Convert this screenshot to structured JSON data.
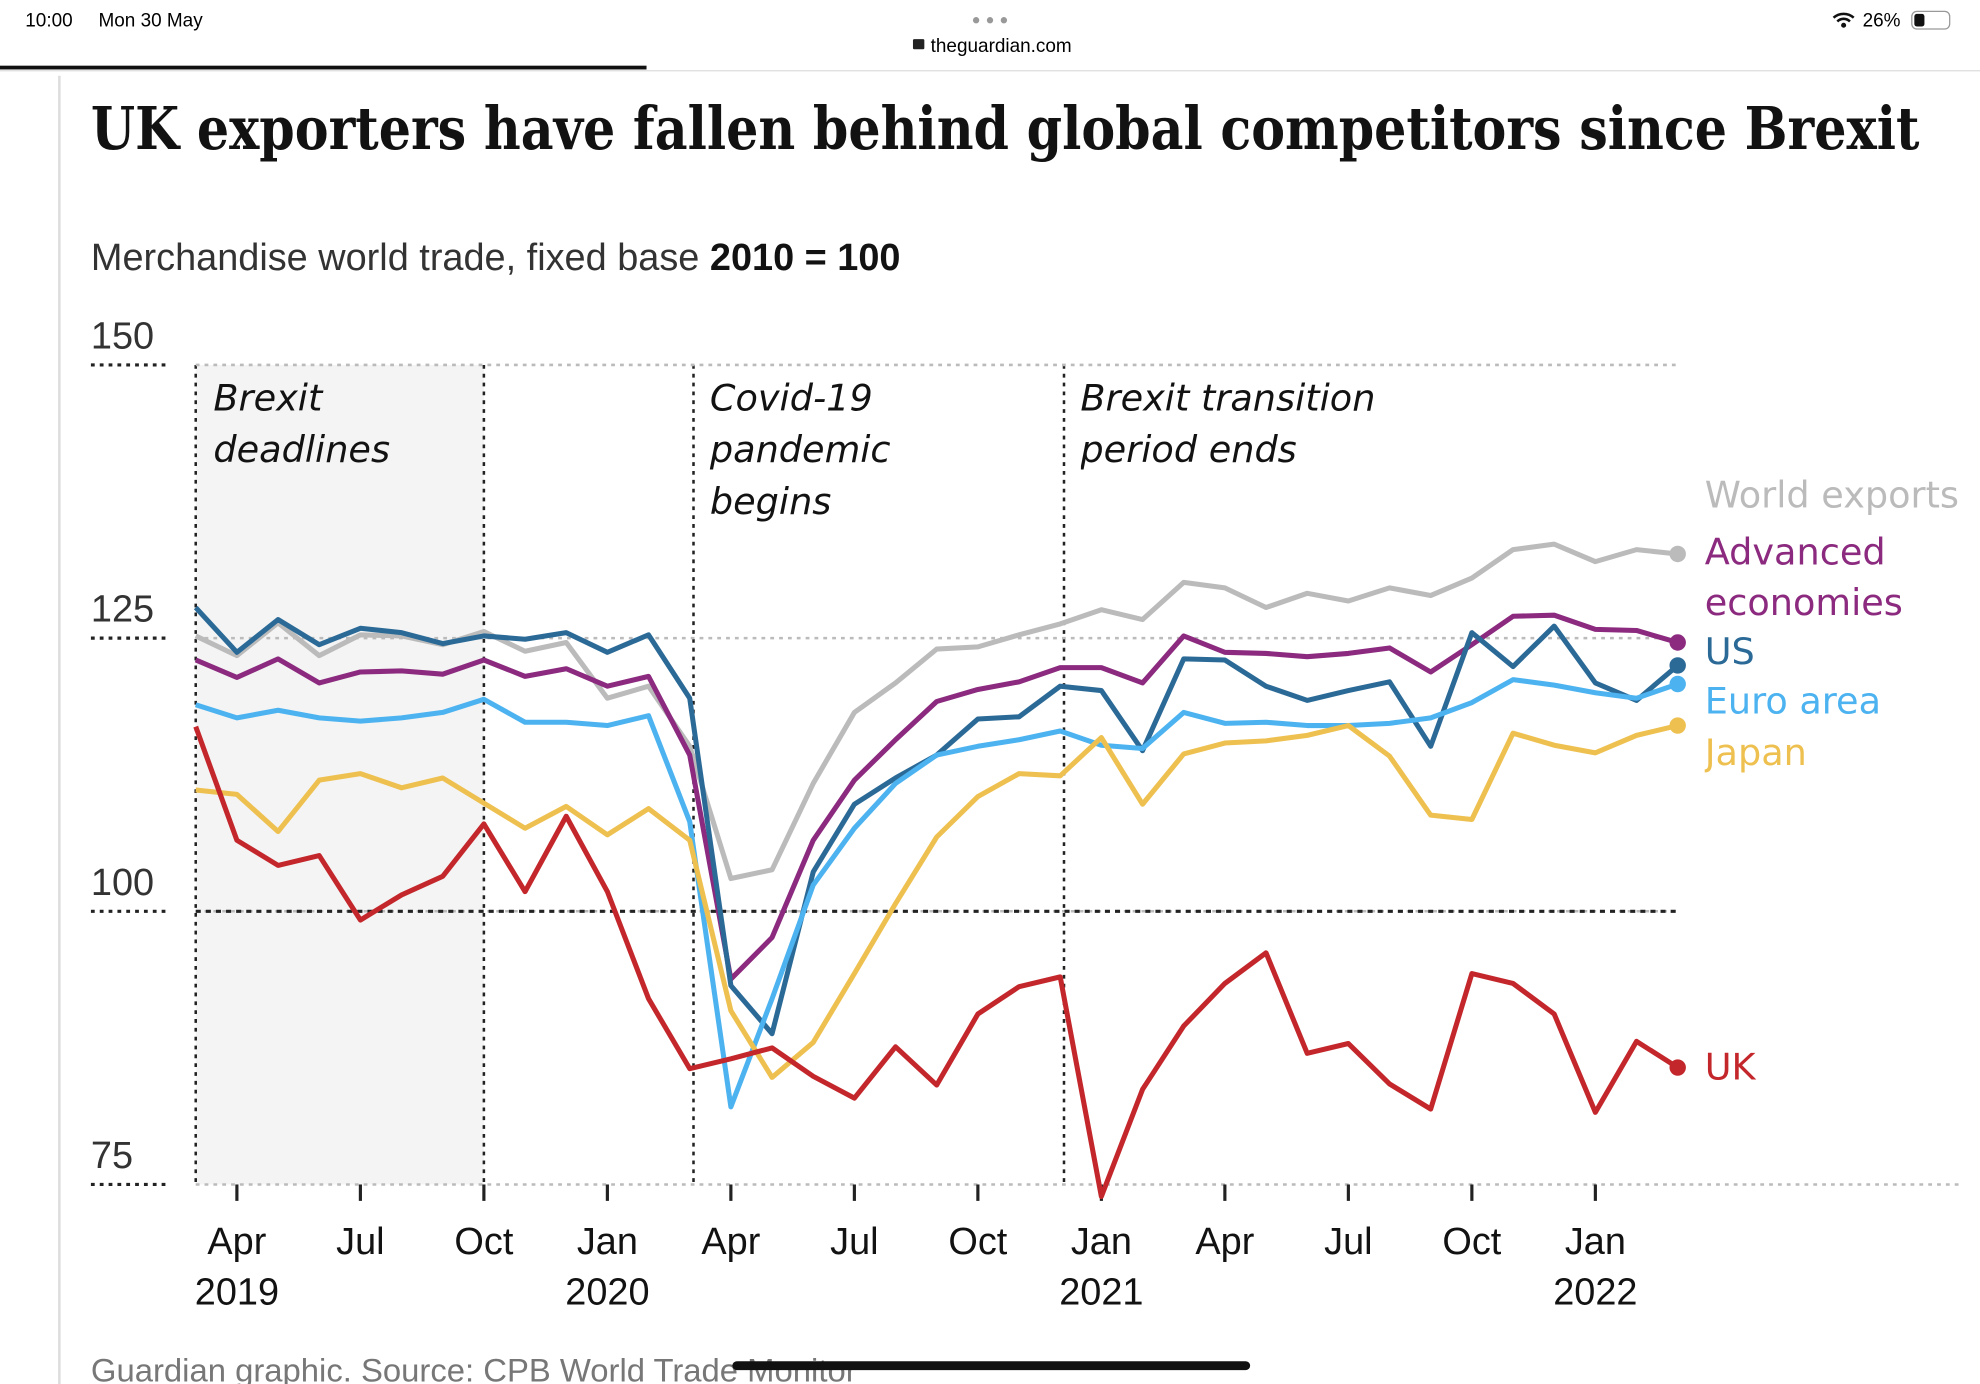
{
  "status_bar": {
    "time": "10:00",
    "date": "Mon 30 May",
    "battery": "26%"
  },
  "browser": {
    "url": "theguardian.com"
  },
  "chart_data": {
    "type": "line",
    "title": "UK exporters have fallen behind global competitors since Brexit",
    "subtitle": "Merchandise world trade, fixed base",
    "subtitle_emphasis": "2010 = 100",
    "source": "Guardian graphic. Source: CPB World Trade Monitor",
    "x": [
      "2019-03",
      "2019-04",
      "2019-05",
      "2019-06",
      "2019-07",
      "2019-08",
      "2019-09",
      "2019-10",
      "2019-11",
      "2019-12",
      "2020-01",
      "2020-02",
      "2020-03",
      "2020-04",
      "2020-05",
      "2020-06",
      "2020-07",
      "2020-08",
      "2020-09",
      "2020-10",
      "2020-11",
      "2020-12",
      "2021-01",
      "2021-02",
      "2021-03",
      "2021-04",
      "2021-05",
      "2021-06",
      "2021-07",
      "2021-08",
      "2021-09",
      "2021-10",
      "2021-11",
      "2021-12",
      "2022-01",
      "2022-02",
      "2022-03"
    ],
    "series": [
      {
        "name": "World exports",
        "color": "#bbbbbb",
        "values": [
          125.2,
          123.4,
          126.4,
          123.4,
          125.3,
          125.2,
          124.4,
          125.6,
          123.8,
          124.6,
          119.5,
          120.6,
          115.1,
          103.0,
          103.8,
          111.7,
          118.2,
          120.9,
          124.0,
          124.2,
          125.3,
          126.3,
          127.6,
          126.7,
          130.1,
          129.6,
          127.8,
          129.1,
          128.4,
          129.6,
          128.9,
          130.5,
          133.1,
          133.6,
          132.0,
          133.1,
          132.7
        ]
      },
      {
        "name": "Advanced economies",
        "color": "#8b2a7e",
        "values": [
          123.0,
          121.4,
          123.1,
          120.9,
          121.9,
          122.0,
          121.7,
          123.0,
          121.5,
          122.2,
          120.6,
          121.5,
          114.3,
          93.8,
          97.6,
          106.5,
          112.0,
          115.7,
          119.2,
          120.3,
          121.0,
          122.3,
          122.3,
          120.9,
          125.2,
          123.7,
          123.6,
          123.3,
          123.6,
          124.1,
          121.9,
          124.4,
          127.0,
          127.1,
          125.8,
          125.7,
          124.6
        ]
      },
      {
        "name": "US",
        "color": "#2b6a97",
        "values": [
          127.8,
          123.7,
          126.7,
          124.4,
          125.9,
          125.5,
          124.5,
          125.2,
          124.9,
          125.5,
          123.7,
          125.3,
          119.5,
          93.2,
          88.8,
          103.6,
          109.8,
          112.2,
          114.3,
          117.6,
          117.8,
          120.6,
          120.2,
          114.7,
          123.1,
          123.0,
          120.6,
          119.3,
          120.2,
          121.0,
          115.1,
          125.5,
          122.4,
          126.1,
          120.9,
          119.3,
          122.5
        ]
      },
      {
        "name": "Euro area",
        "color": "#4cb3f0",
        "values": [
          118.9,
          117.7,
          118.4,
          117.7,
          117.4,
          117.7,
          118.2,
          119.4,
          117.3,
          117.3,
          117.0,
          117.9,
          108.2,
          82.1,
          92.0,
          102.4,
          107.6,
          111.7,
          114.3,
          115.1,
          115.7,
          116.5,
          115.2,
          114.9,
          118.2,
          117.2,
          117.3,
          117.0,
          117.0,
          117.2,
          117.7,
          119.1,
          121.2,
          120.7,
          120.0,
          119.5,
          120.8
        ]
      },
      {
        "name": "Japan",
        "color": "#eec04f",
        "values": [
          111.1,
          110.7,
          107.3,
          112.0,
          112.6,
          111.3,
          112.2,
          109.9,
          107.6,
          109.6,
          107.0,
          109.4,
          106.5,
          90.9,
          84.8,
          88.0,
          94.3,
          100.7,
          106.8,
          110.5,
          112.6,
          112.4,
          115.9,
          109.8,
          114.4,
          115.4,
          115.6,
          116.1,
          117.0,
          114.2,
          108.8,
          108.4,
          116.3,
          115.2,
          114.5,
          116.1,
          117.0
        ]
      },
      {
        "name": "UK",
        "color": "#c4272b",
        "values": [
          116.9,
          106.5,
          104.2,
          105.1,
          99.2,
          101.5,
          103.2,
          108.0,
          101.8,
          108.7,
          101.8,
          92.0,
          85.6,
          86.5,
          87.5,
          84.9,
          82.9,
          87.6,
          84.1,
          90.6,
          93.1,
          94.0,
          73.9,
          83.7,
          89.5,
          93.4,
          96.2,
          87.0,
          87.9,
          84.2,
          81.9,
          94.3,
          93.4,
          90.6,
          81.6,
          88.1,
          85.7
        ]
      }
    ],
    "ylim": [
      75,
      150
    ],
    "yticks": [
      75,
      100,
      125,
      150
    ],
    "reference_line": 100,
    "grid": true,
    "xticks": [
      {
        "value": "2019-04",
        "label": "Apr",
        "sublabel": "2019"
      },
      {
        "value": "2019-07",
        "label": "Jul"
      },
      {
        "value": "2019-10",
        "label": "Oct"
      },
      {
        "value": "2020-01",
        "label": "Jan",
        "sublabel": "2020"
      },
      {
        "value": "2020-04",
        "label": "Apr"
      },
      {
        "value": "2020-07",
        "label": "Jul"
      },
      {
        "value": "2020-10",
        "label": "Oct"
      },
      {
        "value": "2021-01",
        "label": "Jan",
        "sublabel": "2021"
      },
      {
        "value": "2021-04",
        "label": "Apr"
      },
      {
        "value": "2021-07",
        "label": "Jul"
      },
      {
        "value": "2021-10",
        "label": "Oct"
      },
      {
        "value": "2022-01",
        "label": "Jan",
        "sublabel": "2022"
      }
    ],
    "shaded_period": {
      "from": "2019-03",
      "to": "2019-10",
      "text": "Brexit deadlines"
    },
    "events": [
      {
        "x": "2020-03",
        "text": "Covid-19 pandemic begins"
      },
      {
        "x": "2020-12",
        "text": "Brexit transition period ends"
      }
    ]
  }
}
